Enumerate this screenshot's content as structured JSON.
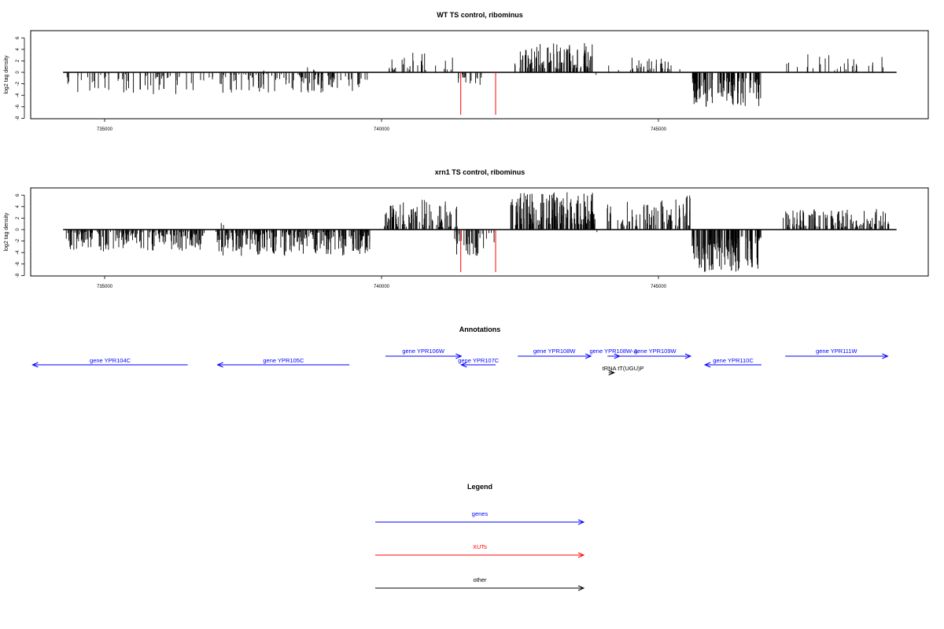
{
  "panels": [
    {
      "title": "WT TS control, ribominus",
      "ylabel": "log2 tag density",
      "yticks": [
        "6",
        "4",
        "2",
        "0",
        "-2",
        "-4",
        "-6",
        "-8"
      ],
      "xticks": [
        "735000",
        "740000",
        "745000"
      ]
    },
    {
      "title": "xrn1 TS control, ribominus",
      "ylabel": "log2 tag density",
      "yticks": [
        "6",
        "4",
        "2",
        "0",
        "-2",
        "-4",
        "-6",
        "-8"
      ],
      "xticks": [
        "735000",
        "740000",
        "745000"
      ]
    }
  ],
  "annotations": {
    "title": "Annotations",
    "features": [
      {
        "label": "gene YPR104C",
        "kind": "gene",
        "strand": "-",
        "start": 733700,
        "end": 736500
      },
      {
        "label": "gene YPR105C",
        "kind": "gene",
        "strand": "-",
        "start": 737040,
        "end": 739420
      },
      {
        "label": "gene YPR106W",
        "kind": "gene",
        "strand": "+",
        "start": 740070,
        "end": 741440
      },
      {
        "label": "gene YPR107C",
        "kind": "gene",
        "strand": "-",
        "start": 741440,
        "end": 742060
      },
      {
        "label": "gene YPR108W",
        "kind": "gene",
        "strand": "+",
        "start": 742460,
        "end": 743780
      },
      {
        "label": "gene YPR108W-A",
        "kind": "gene",
        "strand": "+",
        "start": 744080,
        "end": 744300
      },
      {
        "label": "gene YPR109W",
        "kind": "gene",
        "strand": "+",
        "start": 744300,
        "end": 745580
      },
      {
        "label": "gene YPR110C",
        "kind": "gene",
        "strand": "-",
        "start": 745840,
        "end": 746860
      },
      {
        "label": "gene YPR111W",
        "kind": "gene",
        "strand": "+",
        "start": 747290,
        "end": 749140
      },
      {
        "label": "tRNA tT(UGU)P",
        "kind": "other",
        "strand": "+",
        "start": 744100,
        "end": 744200
      }
    ]
  },
  "legend": {
    "title": "Legend",
    "items": [
      {
        "label": "genes",
        "color": "#0000ff"
      },
      {
        "label": "XUTs",
        "color": "#ff0000"
      },
      {
        "label": "other",
        "color": "#000000"
      }
    ]
  },
  "chart_data": [
    {
      "type": "bar",
      "title": "WT TS control, ribominus",
      "xlabel": "",
      "ylabel": "log2 tag density",
      "xlim": [
        733700,
        749900
      ],
      "ylim": [
        -8,
        7
      ],
      "grid": false,
      "segments": [
        {
          "start": 734300,
          "end": 736800,
          "sign": -1,
          "min": 0.3,
          "max": 3.8,
          "density": 0.35,
          "color": "#000000"
        },
        {
          "start": 736850,
          "end": 737000,
          "sign": -1,
          "min": 0.3,
          "max": 2.0,
          "density": 0.3,
          "color": "#000000"
        },
        {
          "start": 737020,
          "end": 739650,
          "sign": -1,
          "min": 0.3,
          "max": 3.6,
          "density": 0.6,
          "color": "#000000"
        },
        {
          "start": 739700,
          "end": 739800,
          "sign": -1,
          "min": 0.5,
          "max": 1.5,
          "density": 0.3,
          "color": "#000000"
        },
        {
          "start": 737600,
          "end": 739400,
          "sign": 1,
          "min": 0.3,
          "max": 1.7,
          "density": 0.03,
          "color": "#000000"
        },
        {
          "start": 740120,
          "end": 741380,
          "sign": 1,
          "min": 0.4,
          "max": 3.6,
          "density": 0.3,
          "color": "#000000"
        },
        {
          "start": 741320,
          "end": 741820,
          "sign": -1,
          "min": 0.3,
          "max": 2.3,
          "density": 0.45,
          "color": "#000000"
        },
        {
          "start": 742400,
          "end": 743820,
          "sign": 1,
          "min": 0.6,
          "max": 5.1,
          "density": 1.1,
          "color": "#000000"
        },
        {
          "start": 743850,
          "end": 744150,
          "sign": -1,
          "min": 0.4,
          "max": 1.6,
          "density": 0.05,
          "color": "#000000"
        },
        {
          "start": 744100,
          "end": 744900,
          "sign": 1,
          "min": 0.4,
          "max": 3.0,
          "density": 0.3,
          "color": "#000000"
        },
        {
          "start": 744900,
          "end": 745450,
          "sign": 1,
          "min": 0.4,
          "max": 3.0,
          "density": 0.35,
          "color": "#000000"
        },
        {
          "start": 745600,
          "end": 746850,
          "sign": -1,
          "min": 1.0,
          "max": 6.2,
          "density": 1.3,
          "color": "#000000"
        },
        {
          "start": 747300,
          "end": 749200,
          "sign": 1,
          "min": 0.3,
          "max": 3.4,
          "density": 0.2,
          "color": "#000000"
        }
      ],
      "xut_spikes": [
        {
          "x": 741430,
          "value": -7.4,
          "color": "#ff0000"
        },
        {
          "x": 742060,
          "value": -7.4,
          "color": "#ff0000"
        }
      ]
    },
    {
      "type": "bar",
      "title": "xrn1 TS control, ribominus",
      "xlabel": "",
      "ylabel": "log2 tag density",
      "xlim": [
        733700,
        749900
      ],
      "ylim": [
        -8,
        7
      ],
      "grid": false,
      "segments": [
        {
          "start": 734300,
          "end": 736800,
          "sign": -1,
          "min": 0.4,
          "max": 3.8,
          "density": 1.1,
          "color": "#000000"
        },
        {
          "start": 737000,
          "end": 739800,
          "sign": -1,
          "min": 0.4,
          "max": 4.6,
          "density": 1.3,
          "color": "#000000"
        },
        {
          "start": 737000,
          "end": 737500,
          "sign": 1,
          "min": 0.5,
          "max": 3.2,
          "density": 0.05,
          "color": "#000000"
        },
        {
          "start": 740050,
          "end": 741380,
          "sign": 1,
          "min": 0.4,
          "max": 5.2,
          "density": 0.9,
          "color": "#000000"
        },
        {
          "start": 741320,
          "end": 741850,
          "sign": -1,
          "min": 0.4,
          "max": 4.6,
          "density": 0.9,
          "color": "#000000"
        },
        {
          "start": 741880,
          "end": 742060,
          "sign": -1,
          "min": 0.4,
          "max": 2.5,
          "density": 0.4,
          "color": "#000000"
        },
        {
          "start": 742320,
          "end": 743860,
          "sign": 1,
          "min": 0.8,
          "max": 6.5,
          "density": 1.5,
          "color": "#000000"
        },
        {
          "start": 743850,
          "end": 744150,
          "sign": -1,
          "min": 0.4,
          "max": 2.2,
          "density": 0.05,
          "color": "#000000"
        },
        {
          "start": 744050,
          "end": 744900,
          "sign": 1,
          "min": 0.5,
          "max": 5.0,
          "density": 0.6,
          "color": "#000000"
        },
        {
          "start": 744900,
          "end": 745600,
          "sign": 1,
          "min": 0.6,
          "max": 6.2,
          "density": 0.9,
          "color": "#000000"
        },
        {
          "start": 745600,
          "end": 746850,
          "sign": -1,
          "min": 1.2,
          "max": 7.4,
          "density": 1.5,
          "color": "#000000"
        },
        {
          "start": 747250,
          "end": 749200,
          "sign": 1,
          "min": 0.4,
          "max": 3.6,
          "density": 0.9,
          "color": "#000000"
        }
      ],
      "xut_spikes": [
        {
          "x": 741430,
          "value": -7.4,
          "color": "#ff0000"
        },
        {
          "x": 742060,
          "value": -7.4,
          "color": "#ff0000"
        }
      ]
    }
  ]
}
